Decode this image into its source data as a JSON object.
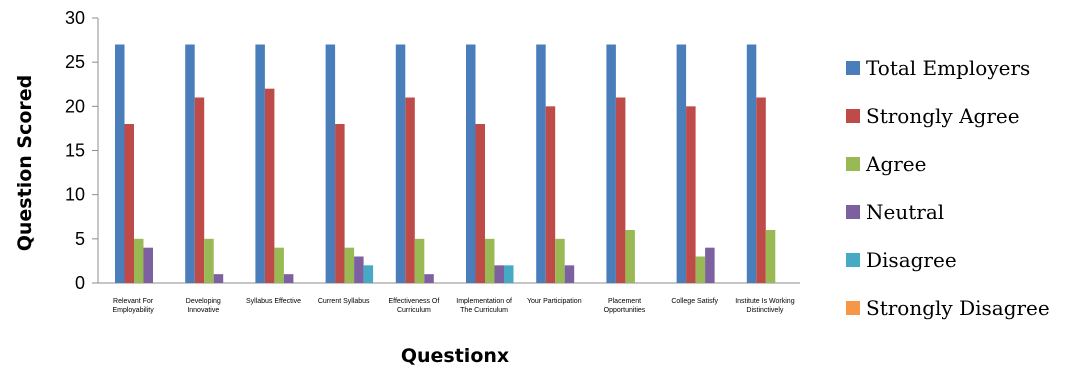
{
  "chart_data": {
    "type": "bar",
    "title": "",
    "xlabel": "Questionx",
    "ylabel": "Question Scored",
    "ylim": [
      0,
      30
    ],
    "yticks": [
      0,
      5,
      10,
      15,
      20,
      25,
      30
    ],
    "grid": false,
    "legend_position": "right",
    "categories": [
      [
        "Relevant For",
        "Employability"
      ],
      [
        "Developing",
        "Innovative"
      ],
      [
        "Syllabus Effective"
      ],
      [
        "Current Syllabus"
      ],
      [
        "Effectiveness Of",
        "Curriculum"
      ],
      [
        "Implementation of",
        "The Curriculum"
      ],
      [
        "Your Participation"
      ],
      [
        "Placement",
        "Opportunities"
      ],
      [
        "College Satisfy"
      ],
      [
        "Institute Is Working",
        "Distinctively"
      ]
    ],
    "series": [
      {
        "name": "Total Employers",
        "color": "#4a7ebb",
        "values": [
          27,
          27,
          27,
          27,
          27,
          27,
          27,
          27,
          27,
          27
        ]
      },
      {
        "name": "Strongly Agree",
        "color": "#be4b48",
        "values": [
          18,
          21,
          22,
          18,
          21,
          18,
          20,
          21,
          20,
          21
        ]
      },
      {
        "name": "Agree",
        "color": "#98b954",
        "values": [
          5,
          5,
          4,
          4,
          5,
          5,
          5,
          6,
          3,
          6
        ]
      },
      {
        "name": "Neutral",
        "color": "#7d60a0",
        "values": [
          4,
          1,
          1,
          3,
          1,
          2,
          2,
          0,
          4,
          0
        ]
      },
      {
        "name": "Disagree",
        "color": "#46aac5",
        "values": [
          0,
          0,
          0,
          2,
          0,
          2,
          0,
          0,
          0,
          0
        ]
      },
      {
        "name": "Strongly Disagree",
        "color": "#f79646",
        "values": [
          0,
          0,
          0,
          0,
          0,
          0,
          0,
          0,
          0,
          0
        ]
      }
    ]
  }
}
